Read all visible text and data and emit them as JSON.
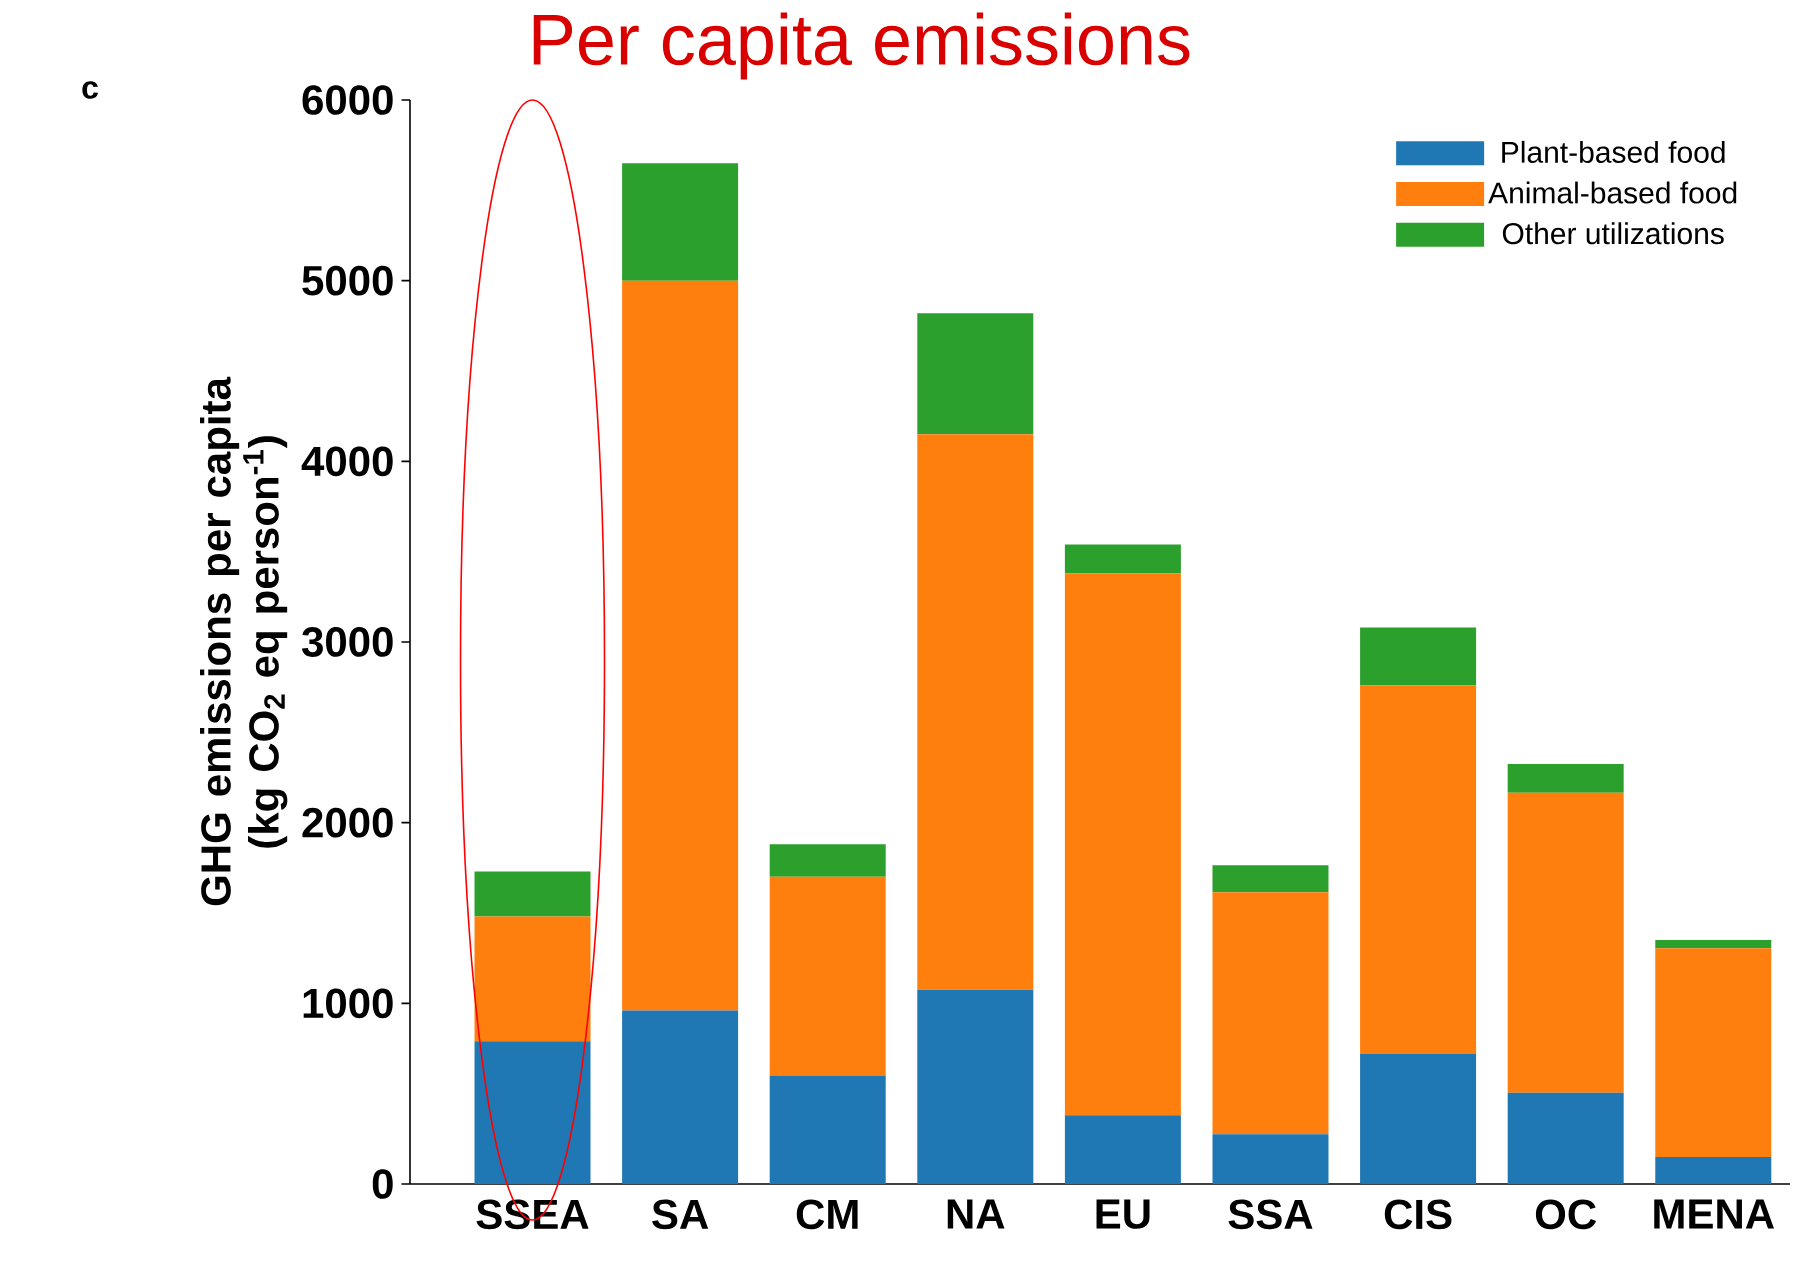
{
  "chart_data": {
    "type": "bar",
    "title": "Per capita emissions",
    "annotations": [
      "c"
    ],
    "ylabel": "GHG emissions per capita (kg CO$_{2}$ eq person$^{-1}$)",
    "categories": [
      "SSEA",
      "SA",
      "CM",
      "NA",
      "EU",
      "SSA",
      "CIS",
      "OC",
      "MENA"
    ],
    "stacked": true,
    "series": [
      {
        "name": "Plant-based food",
        "color": "#1f77b4",
        "values": [
          790,
          960,
          600,
          1075,
          380,
          275,
          720,
          505,
          150
        ]
      },
      {
        "name": "Animal-based food",
        "color": "#ff7f0e",
        "values": [
          690,
          4040,
          1100,
          3075,
          3000,
          1340,
          2040,
          1660,
          1155
        ]
      },
      {
        "name": "Other utilizations",
        "color": "#2ca02c",
        "values": [
          250,
          650,
          180,
          670,
          160,
          150,
          320,
          160,
          45
        ]
      }
    ],
    "ylim": [
      0,
      6000
    ],
    "yticks": [
      0,
      1000,
      2000,
      3000,
      4000,
      5000,
      6000
    ],
    "legend": "top right"
  }
}
